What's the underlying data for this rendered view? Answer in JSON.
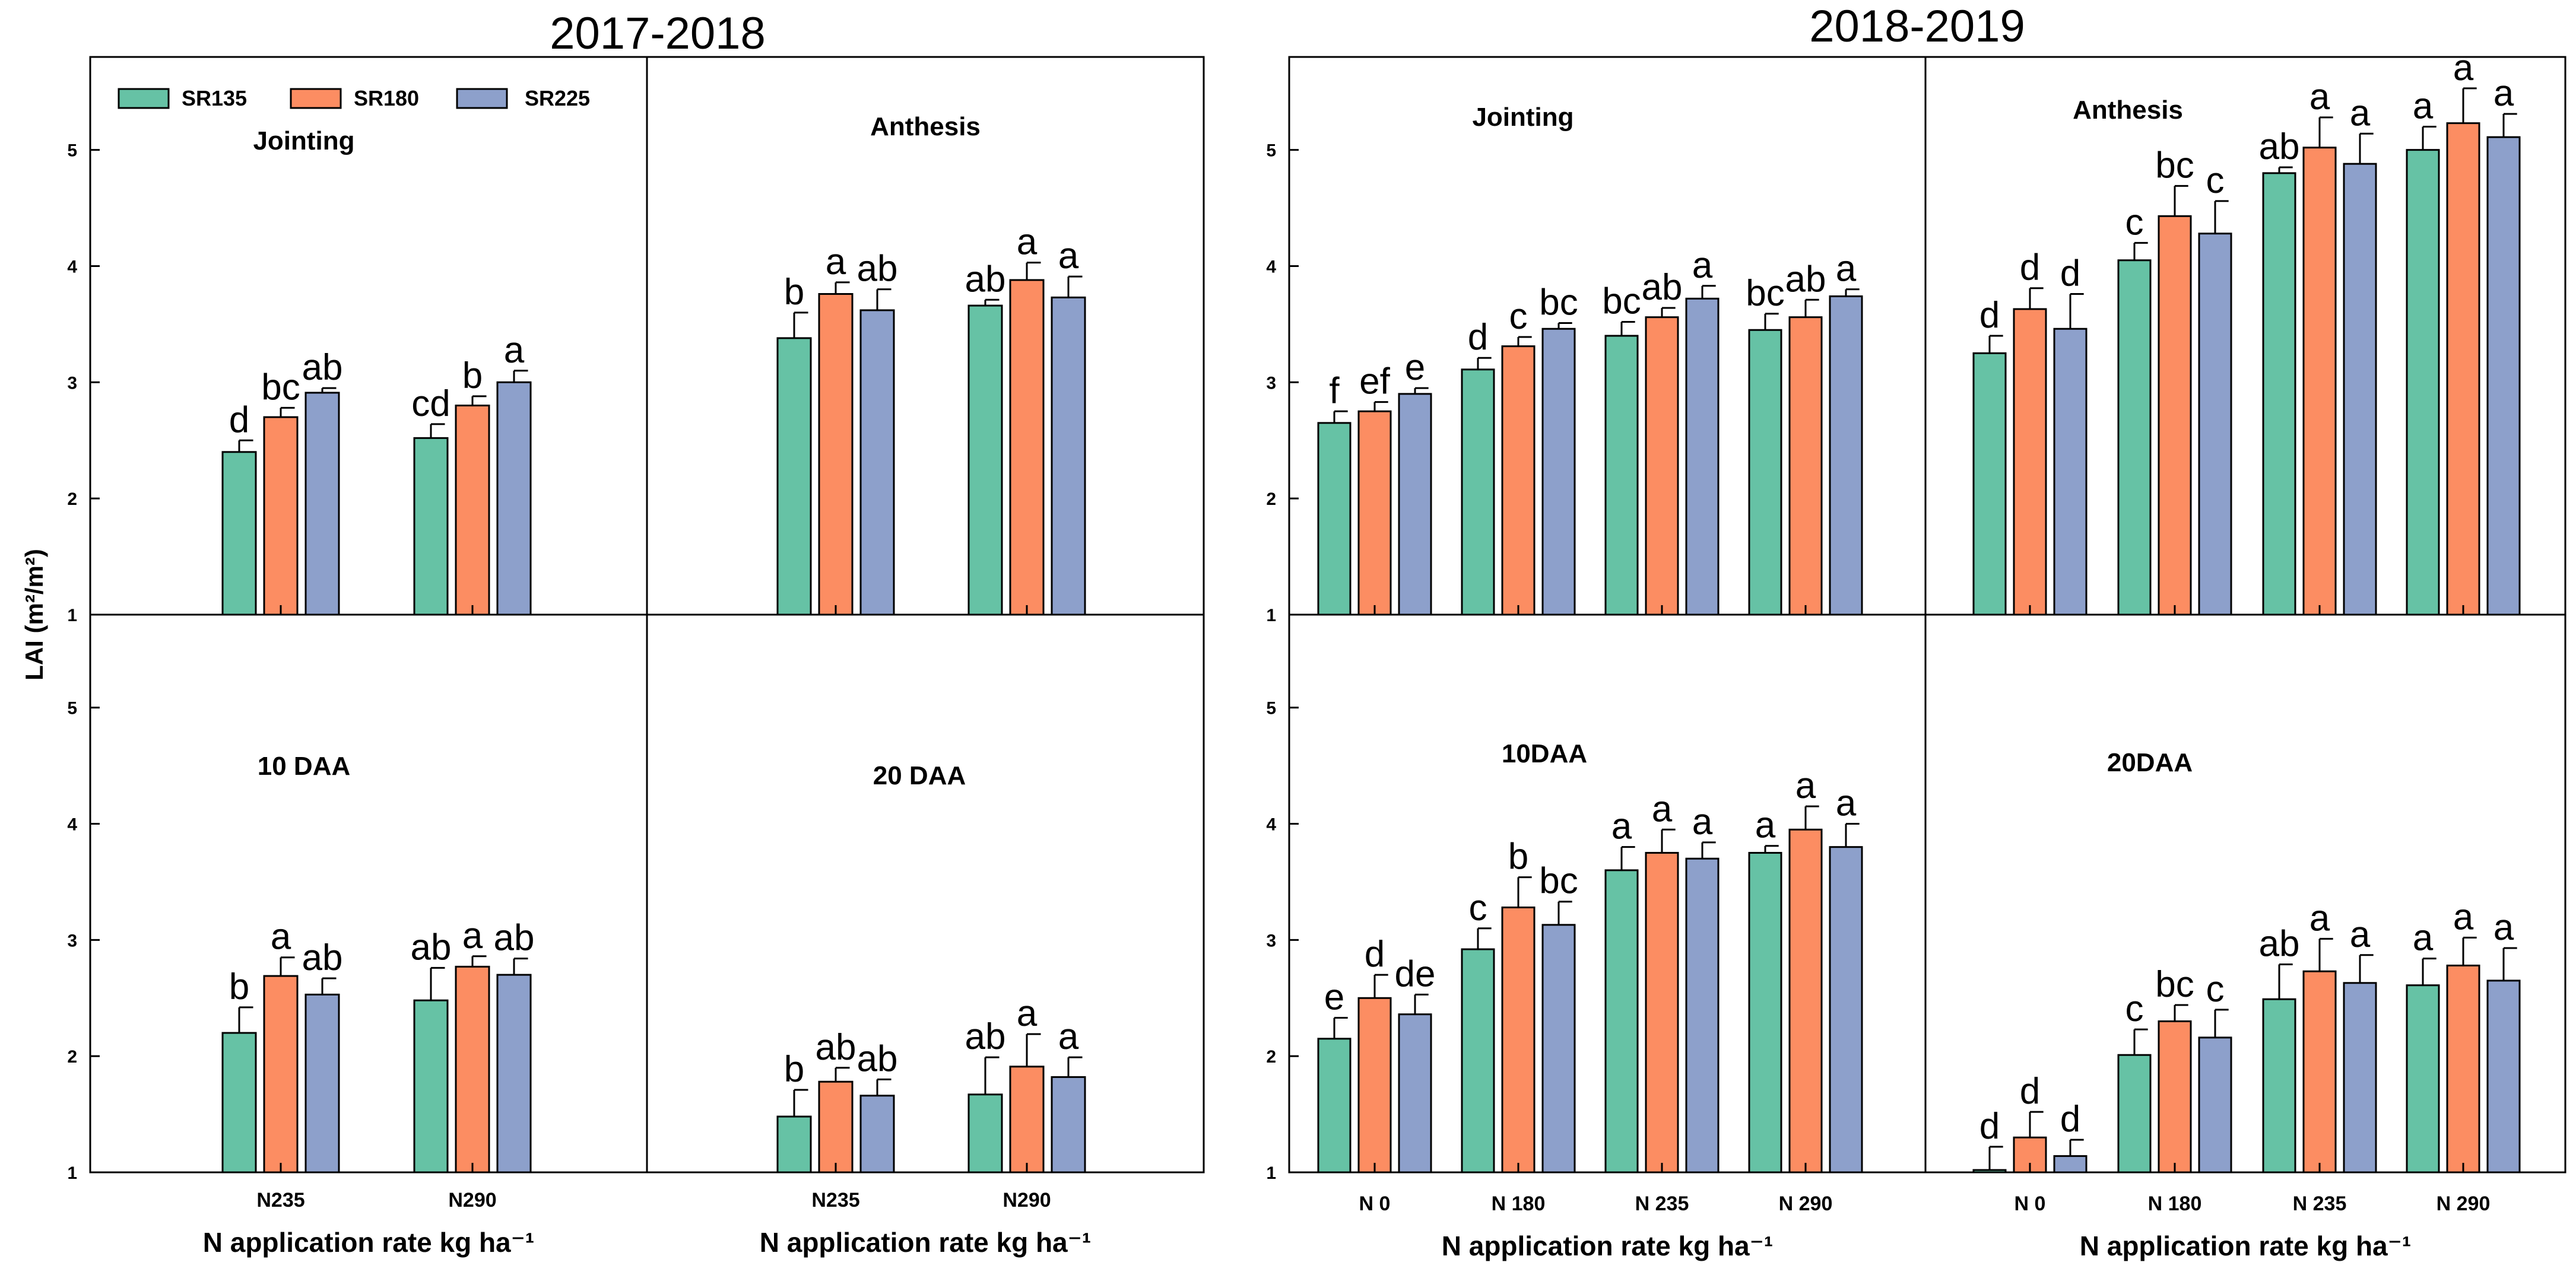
{
  "colors": {
    "SR135": "#66c2a5",
    "SR180": "#fc8d62",
    "SR225": "#8da0cb"
  },
  "legend": {
    "items": [
      "SR135",
      "SR180",
      "SR225"
    ]
  },
  "axis": {
    "y_label": "LAI (m²/m²)",
    "y_ticks": [
      "1",
      "2",
      "3",
      "4",
      "5"
    ]
  },
  "chart_data": [
    {
      "type": "bar",
      "title": "2017-2018",
      "xlabel": "N application rate kg ha⁻¹",
      "ylabel": "LAI (m²/m²)",
      "ylim": [
        1,
        5.8
      ],
      "categories": [
        "N235",
        "N290"
      ],
      "panels": [
        {
          "title": "Jointing",
          "series": [
            {
              "name": "SR135",
              "values": [
                2.4,
                2.52
              ],
              "errors": [
                0.1,
                0.12
              ],
              "letters": [
                "d",
                "cd"
              ]
            },
            {
              "name": "SR180",
              "values": [
                2.7,
                2.8
              ],
              "errors": [
                0.08,
                0.08
              ],
              "letters": [
                "bc",
                "b"
              ]
            },
            {
              "name": "SR225",
              "values": [
                2.91,
                3.0
              ],
              "errors": [
                0.04,
                0.1
              ],
              "letters": [
                "ab",
                "a"
              ]
            }
          ]
        },
        {
          "title": "Anthesis",
          "series": [
            {
              "name": "SR135",
              "values": [
                3.38,
                3.66
              ],
              "errors": [
                0.22,
                0.05
              ],
              "letters": [
                "b",
                "ab"
              ]
            },
            {
              "name": "SR180",
              "values": [
                3.76,
                3.88
              ],
              "errors": [
                0.1,
                0.15
              ],
              "letters": [
                "a",
                "a"
              ]
            },
            {
              "name": "SR225",
              "values": [
                3.62,
                3.73
              ],
              "errors": [
                0.18,
                0.18
              ],
              "letters": [
                "ab",
                "a"
              ]
            }
          ]
        },
        {
          "title": "10 DAA",
          "series": [
            {
              "name": "SR135",
              "values": [
                2.2,
                2.48
              ],
              "errors": [
                0.22,
                0.28
              ],
              "letters": [
                "b",
                "ab"
              ]
            },
            {
              "name": "SR180",
              "values": [
                2.69,
                2.77
              ],
              "errors": [
                0.16,
                0.09
              ],
              "letters": [
                "a",
                "a"
              ]
            },
            {
              "name": "SR225",
              "values": [
                2.53,
                2.7
              ],
              "errors": [
                0.14,
                0.14
              ],
              "letters": [
                "ab",
                "ab"
              ]
            }
          ]
        },
        {
          "title": "20 DAA",
          "series": [
            {
              "name": "SR135",
              "values": [
                1.48,
                1.67
              ],
              "errors": [
                0.23,
                0.32
              ],
              "letters": [
                "b",
                "ab"
              ]
            },
            {
              "name": "SR180",
              "values": [
                1.78,
                1.91
              ],
              "errors": [
                0.12,
                0.28
              ],
              "letters": [
                "ab",
                "a"
              ]
            },
            {
              "name": "SR225",
              "values": [
                1.66,
                1.82
              ],
              "errors": [
                0.14,
                0.17
              ],
              "letters": [
                "ab",
                "a"
              ]
            }
          ]
        }
      ]
    },
    {
      "type": "bar",
      "title": "2018-2019",
      "xlabel": "N application rate kg ha⁻¹",
      "ylabel": "LAI (m²/m²)",
      "ylim": [
        1,
        5.8
      ],
      "categories": [
        "N 0",
        "N 180",
        "N 235",
        "N 290"
      ],
      "panels": [
        {
          "title": "Jointing",
          "series": [
            {
              "name": "SR135",
              "values": [
                2.65,
                3.11,
                3.4,
                3.45
              ],
              "errors": [
                0.1,
                0.1,
                0.12,
                0.14
              ],
              "letters": [
                "f",
                "d",
                "bc",
                "bc"
              ]
            },
            {
              "name": "SR180",
              "values": [
                2.75,
                3.31,
                3.56,
                3.56
              ],
              "errors": [
                0.08,
                0.08,
                0.08,
                0.15
              ],
              "letters": [
                "ef",
                "c",
                "ab",
                "ab"
              ]
            },
            {
              "name": "SR225",
              "values": [
                2.9,
                3.46,
                3.72,
                3.74
              ],
              "errors": [
                0.05,
                0.05,
                0.11,
                0.06
              ],
              "letters": [
                "e",
                "bc",
                "a",
                "a"
              ]
            }
          ]
        },
        {
          "title": "Anthesis",
          "series": [
            {
              "name": "SR135",
              "values": [
                3.25,
                4.05,
                4.8,
                5.0
              ],
              "errors": [
                0.15,
                0.15,
                0.05,
                0.2
              ],
              "letters": [
                "d",
                "c",
                "ab",
                "a"
              ]
            },
            {
              "name": "SR180",
              "values": [
                3.63,
                4.43,
                5.02,
                5.23
              ],
              "errors": [
                0.18,
                0.26,
                0.26,
                0.3
              ],
              "letters": [
                "d",
                "bc",
                "a",
                "a"
              ]
            },
            {
              "name": "SR225",
              "values": [
                3.46,
                4.28,
                4.88,
                5.11
              ],
              "errors": [
                0.3,
                0.28,
                0.26,
                0.2
              ],
              "letters": [
                "d",
                "c",
                "a",
                "a"
              ]
            }
          ]
        },
        {
          "title": "10DAA",
          "series": [
            {
              "name": "SR135",
              "values": [
                2.15,
                2.92,
                3.6,
                3.75
              ],
              "errors": [
                0.18,
                0.18,
                0.2,
                0.06
              ],
              "letters": [
                "e",
                "c",
                "a",
                "a"
              ]
            },
            {
              "name": "SR180",
              "values": [
                2.5,
                3.28,
                3.75,
                3.95
              ],
              "errors": [
                0.2,
                0.26,
                0.2,
                0.2
              ],
              "letters": [
                "d",
                "b",
                "a",
                "a"
              ]
            },
            {
              "name": "SR225",
              "values": [
                2.36,
                3.13,
                3.7,
                3.8
              ],
              "errors": [
                0.17,
                0.2,
                0.14,
                0.2
              ],
              "letters": [
                "de",
                "bc",
                "a",
                "a"
              ]
            }
          ]
        },
        {
          "title": "20DAA",
          "series": [
            {
              "name": "SR135",
              "values": [
                1.02,
                2.01,
                2.49,
                2.61
              ],
              "errors": [
                0.2,
                0.22,
                0.3,
                0.23
              ],
              "letters": [
                "d",
                "c",
                "ab",
                "a"
              ]
            },
            {
              "name": "SR180",
              "values": [
                1.3,
                2.3,
                2.73,
                2.78
              ],
              "errors": [
                0.22,
                0.14,
                0.28,
                0.24
              ],
              "letters": [
                "d",
                "bc",
                "a",
                "a"
              ]
            },
            {
              "name": "SR225",
              "values": [
                1.14,
                2.16,
                2.63,
                2.65
              ],
              "errors": [
                0.14,
                0.24,
                0.24,
                0.28
              ],
              "letters": [
                "d",
                "c",
                "a",
                "a"
              ]
            }
          ]
        }
      ]
    }
  ]
}
